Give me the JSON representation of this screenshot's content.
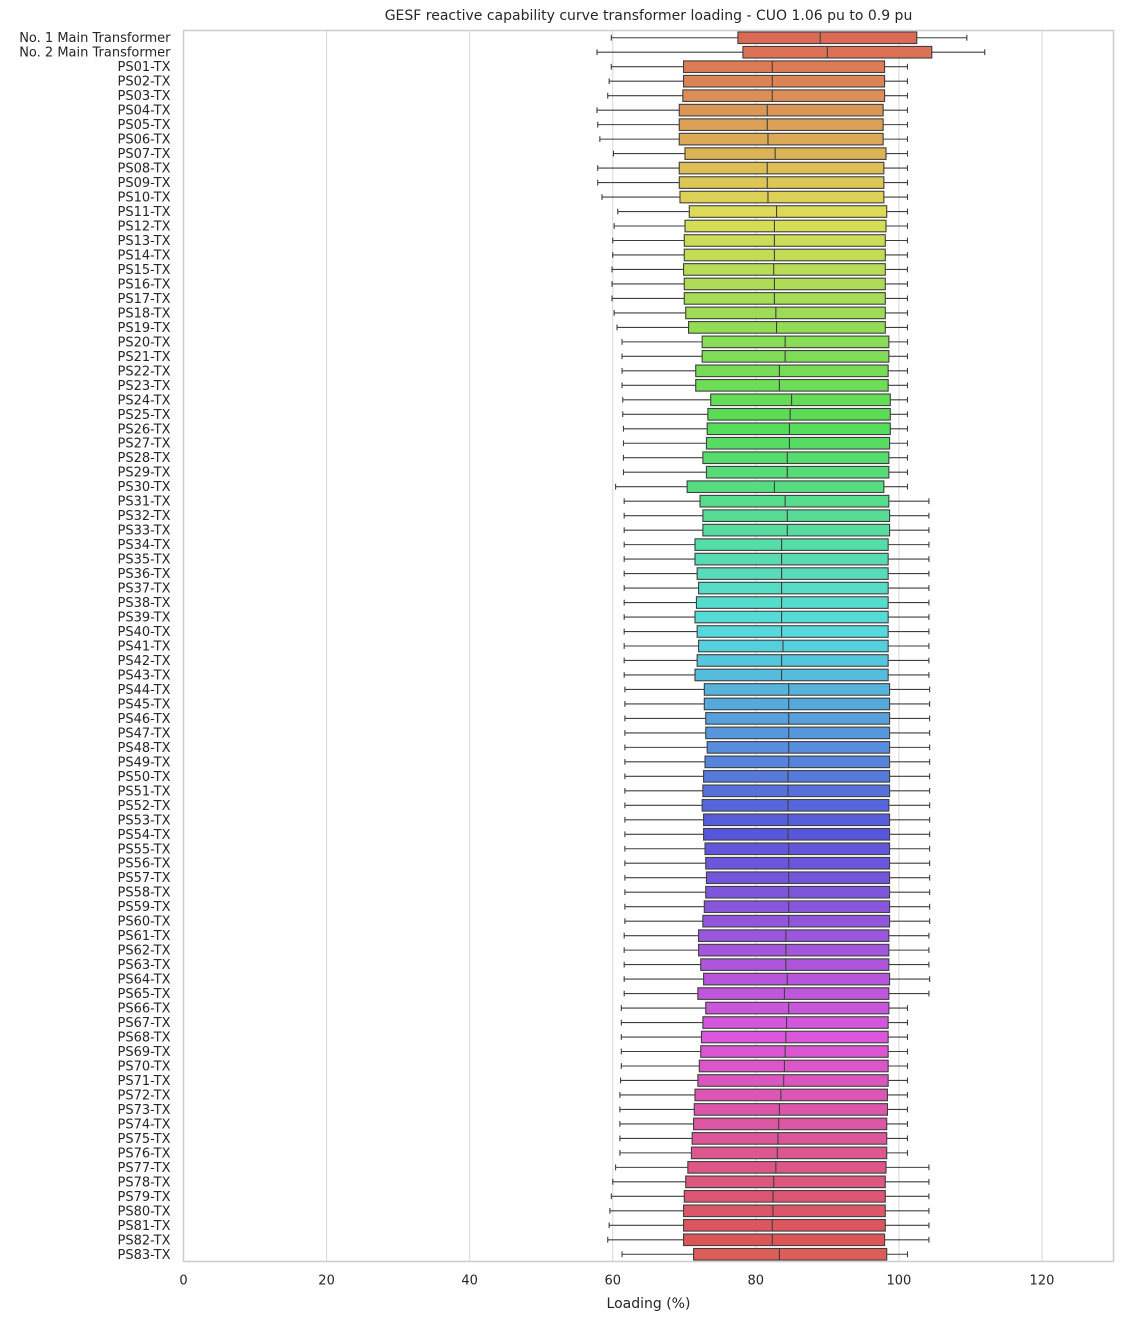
{
  "chart_data": {
    "type": "box",
    "orientation": "horizontal",
    "title": "GESF reactive capability curve transformer loading - CUO 1.06 pu to 0.9 pu",
    "xlabel": "Loading (%)",
    "ylabel": "",
    "xlim": [
      0,
      130
    ],
    "xticks": [
      0,
      20,
      40,
      60,
      80,
      100,
      120
    ],
    "grid": "vertical",
    "legend": "none",
    "palette": "husl",
    "categories": [
      "No. 1 Main Transformer",
      "No. 2 Main Transformer",
      "PS01-TX",
      "PS02-TX",
      "PS03-TX",
      "PS04-TX",
      "PS05-TX",
      "PS06-TX",
      "PS07-TX",
      "PS08-TX",
      "PS09-TX",
      "PS10-TX",
      "PS11-TX",
      "PS12-TX",
      "PS13-TX",
      "PS14-TX",
      "PS15-TX",
      "PS16-TX",
      "PS17-TX",
      "PS18-TX",
      "PS19-TX",
      "PS20-TX",
      "PS21-TX",
      "PS22-TX",
      "PS23-TX",
      "PS24-TX",
      "PS25-TX",
      "PS26-TX",
      "PS27-TX",
      "PS28-TX",
      "PS29-TX",
      "PS30-TX",
      "PS31-TX",
      "PS32-TX",
      "PS33-TX",
      "PS34-TX",
      "PS35-TX",
      "PS36-TX",
      "PS37-TX",
      "PS38-TX",
      "PS39-TX",
      "PS40-TX",
      "PS41-TX",
      "PS42-TX",
      "PS43-TX",
      "PS44-TX",
      "PS45-TX",
      "PS46-TX",
      "PS47-TX",
      "PS48-TX",
      "PS49-TX",
      "PS50-TX",
      "PS51-TX",
      "PS52-TX",
      "PS53-TX",
      "PS54-TX",
      "PS55-TX",
      "PS56-TX",
      "PS57-TX",
      "PS58-TX",
      "PS59-TX",
      "PS60-TX",
      "PS61-TX",
      "PS62-TX",
      "PS63-TX",
      "PS64-TX",
      "PS65-TX",
      "PS66-TX",
      "PS67-TX",
      "PS68-TX",
      "PS69-TX",
      "PS70-TX",
      "PS71-TX",
      "PS72-TX",
      "PS73-TX",
      "PS74-TX",
      "PS75-TX",
      "PS76-TX",
      "PS77-TX",
      "PS78-TX",
      "PS79-TX",
      "PS80-TX",
      "PS81-TX",
      "PS82-TX",
      "PS83-TX"
    ],
    "boxes": [
      [
        59.8,
        77.5,
        89.0,
        102.5,
        109.5
      ],
      [
        57.8,
        78.2,
        90.0,
        104.6,
        112.0
      ],
      [
        59.8,
        69.9,
        82.3,
        98.0,
        101.2
      ],
      [
        59.5,
        69.9,
        82.3,
        98.0,
        101.2
      ],
      [
        59.3,
        69.8,
        82.3,
        98.0,
        101.2
      ],
      [
        57.8,
        69.3,
        81.6,
        97.8,
        101.2
      ],
      [
        57.9,
        69.3,
        81.6,
        97.8,
        101.2
      ],
      [
        58.2,
        69.3,
        81.7,
        97.8,
        101.2
      ],
      [
        60.1,
        70.1,
        82.7,
        98.2,
        101.2
      ],
      [
        57.9,
        69.3,
        81.6,
        97.9,
        101.2
      ],
      [
        57.9,
        69.3,
        81.6,
        97.9,
        101.2
      ],
      [
        58.5,
        69.4,
        81.7,
        97.9,
        101.2
      ],
      [
        60.7,
        70.7,
        82.9,
        98.3,
        101.2
      ],
      [
        60.2,
        70.1,
        82.6,
        98.2,
        101.2
      ],
      [
        60.0,
        70.0,
        82.6,
        98.1,
        101.2
      ],
      [
        60.0,
        70.0,
        82.6,
        98.1,
        101.2
      ],
      [
        59.9,
        69.9,
        82.5,
        98.1,
        101.2
      ],
      [
        59.9,
        70.0,
        82.6,
        98.1,
        101.2
      ],
      [
        59.9,
        70.0,
        82.6,
        98.1,
        101.2
      ],
      [
        60.2,
        70.2,
        82.8,
        98.1,
        101.2
      ],
      [
        60.6,
        70.6,
        82.9,
        98.1,
        101.2
      ],
      [
        61.3,
        72.5,
        84.1,
        98.6,
        101.2
      ],
      [
        61.3,
        72.5,
        84.1,
        98.6,
        101.2
      ],
      [
        61.3,
        71.6,
        83.3,
        98.5,
        101.2
      ],
      [
        61.3,
        71.6,
        83.3,
        98.5,
        101.2
      ],
      [
        61.4,
        73.7,
        85.0,
        98.8,
        101.2
      ],
      [
        61.4,
        73.3,
        84.8,
        98.8,
        101.2
      ],
      [
        61.5,
        73.2,
        84.7,
        98.8,
        101.2
      ],
      [
        61.5,
        73.1,
        84.7,
        98.7,
        101.2
      ],
      [
        61.5,
        72.6,
        84.4,
        98.6,
        101.2
      ],
      [
        61.5,
        73.1,
        84.4,
        98.6,
        101.2
      ],
      [
        60.4,
        70.4,
        82.6,
        97.9,
        101.2
      ],
      [
        61.6,
        72.2,
        84.1,
        98.6,
        104.2
      ],
      [
        61.6,
        72.6,
        84.4,
        98.7,
        104.2
      ],
      [
        61.6,
        72.6,
        84.4,
        98.7,
        104.2
      ],
      [
        61.6,
        71.5,
        83.6,
        98.5,
        104.2
      ],
      [
        61.6,
        71.5,
        83.6,
        98.5,
        104.2
      ],
      [
        61.6,
        71.8,
        83.6,
        98.5,
        104.2
      ],
      [
        61.6,
        72.0,
        83.6,
        98.5,
        104.2
      ],
      [
        61.6,
        71.7,
        83.6,
        98.5,
        104.2
      ],
      [
        61.6,
        71.5,
        83.6,
        98.5,
        104.2
      ],
      [
        61.6,
        71.8,
        83.6,
        98.5,
        104.2
      ],
      [
        61.6,
        72.0,
        83.8,
        98.5,
        104.2
      ],
      [
        61.6,
        71.8,
        83.6,
        98.5,
        104.2
      ],
      [
        61.6,
        71.5,
        83.6,
        98.5,
        104.2
      ],
      [
        61.7,
        72.8,
        84.6,
        98.7,
        104.3
      ],
      [
        61.7,
        72.8,
        84.6,
        98.7,
        104.3
      ],
      [
        61.7,
        73.0,
        84.6,
        98.7,
        104.3
      ],
      [
        61.7,
        73.0,
        84.6,
        98.7,
        104.3
      ],
      [
        61.7,
        73.2,
        84.6,
        98.7,
        104.3
      ],
      [
        61.7,
        72.9,
        84.6,
        98.7,
        104.3
      ],
      [
        61.7,
        72.7,
        84.5,
        98.7,
        104.3
      ],
      [
        61.7,
        72.6,
        84.5,
        98.7,
        104.3
      ],
      [
        61.7,
        72.5,
        84.5,
        98.6,
        104.3
      ],
      [
        61.7,
        72.7,
        84.5,
        98.7,
        104.3
      ],
      [
        61.7,
        72.7,
        84.5,
        98.7,
        104.3
      ],
      [
        61.7,
        72.9,
        84.6,
        98.7,
        104.3
      ],
      [
        61.7,
        73.0,
        84.6,
        98.7,
        104.3
      ],
      [
        61.7,
        73.1,
        84.6,
        98.7,
        104.3
      ],
      [
        61.7,
        73.0,
        84.6,
        98.7,
        104.3
      ],
      [
        61.7,
        72.8,
        84.6,
        98.7,
        104.3
      ],
      [
        61.7,
        72.6,
        84.6,
        98.7,
        104.3
      ],
      [
        61.6,
        72.0,
        84.2,
        98.6,
        104.2
      ],
      [
        61.6,
        72.0,
        84.2,
        98.6,
        104.2
      ],
      [
        61.6,
        72.3,
        84.2,
        98.6,
        104.2
      ],
      [
        61.6,
        72.7,
        84.4,
        98.7,
        104.3
      ],
      [
        61.6,
        71.9,
        84.0,
        98.6,
        104.2
      ],
      [
        61.2,
        73.0,
        84.6,
        98.6,
        101.2
      ],
      [
        61.2,
        72.6,
        84.3,
        98.5,
        101.2
      ],
      [
        61.2,
        72.4,
        84.2,
        98.5,
        101.2
      ],
      [
        61.2,
        72.3,
        84.1,
        98.5,
        101.2
      ],
      [
        61.2,
        72.1,
        84.0,
        98.5,
        101.2
      ],
      [
        61.1,
        71.9,
        83.9,
        98.5,
        101.2
      ],
      [
        61.0,
        71.5,
        83.5,
        98.4,
        101.2
      ],
      [
        61.0,
        71.4,
        83.3,
        98.4,
        101.2
      ],
      [
        61.0,
        71.3,
        83.2,
        98.3,
        101.2
      ],
      [
        61.0,
        71.1,
        83.1,
        98.3,
        101.2
      ],
      [
        61.0,
        71.0,
        83.0,
        98.3,
        101.2
      ],
      [
        60.4,
        70.5,
        82.8,
        98.2,
        104.2
      ],
      [
        60.0,
        70.2,
        82.5,
        98.1,
        104.2
      ],
      [
        59.8,
        70.0,
        82.4,
        98.1,
        104.2
      ],
      [
        59.6,
        69.9,
        82.4,
        98.1,
        104.2
      ],
      [
        59.5,
        69.9,
        82.3,
        98.1,
        104.2
      ],
      [
        59.3,
        69.9,
        82.3,
        98.0,
        104.2
      ],
      [
        61.3,
        71.3,
        83.3,
        98.3,
        101.2
      ]
    ]
  }
}
